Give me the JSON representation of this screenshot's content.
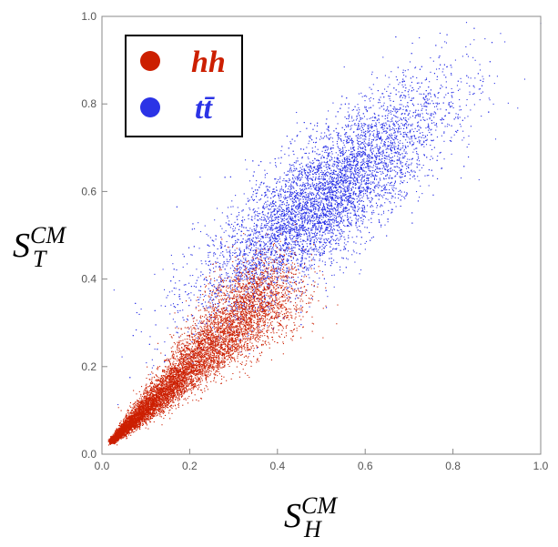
{
  "chart_data": {
    "type": "scatter",
    "xlim": [
      0,
      1.0
    ],
    "ylim": [
      0,
      1.0
    ],
    "x_ticks": [
      "0.0",
      "0.2",
      "0.4",
      "0.6",
      "0.8",
      "1.0"
    ],
    "y_ticks": [
      "0.0",
      "0.2",
      "0.4",
      "0.6",
      "0.8",
      "1.0"
    ],
    "xlabel": {
      "base": "S",
      "sup": "CM",
      "sub": "H"
    },
    "ylabel": {
      "base": "S",
      "sup": "CM",
      "sub": "T"
    },
    "legend_position": "top-left",
    "series": [
      {
        "name": "hh",
        "color": "#cc1f00",
        "distribution": {
          "count": 9000,
          "center_x_range": [
            0.02,
            0.4
          ],
          "y_over_x_ratio": 0.95,
          "spread_growth": 0.23
        }
      },
      {
        "name": "tt̄",
        "color": "#2b33e6",
        "distribution": {
          "count": 8000,
          "center": [
            0.5,
            0.58
          ],
          "sigma_x": 0.14,
          "sigma_y": 0.13,
          "correlation": 0.82
        }
      }
    ]
  }
}
